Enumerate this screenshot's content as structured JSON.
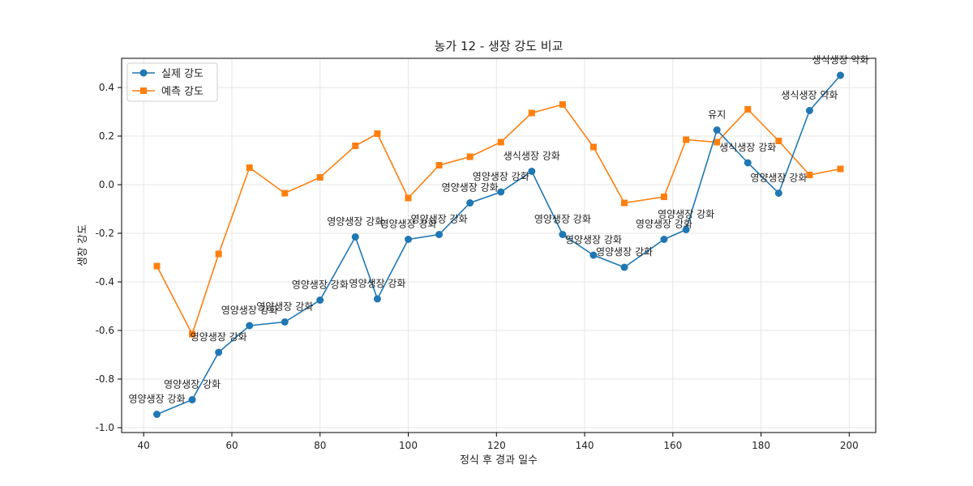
{
  "chart_data": {
    "type": "line",
    "title": "농가 12 - 생장 강도 비교",
    "xlabel": "정식 후 경과 일수",
    "ylabel": "생장 강도",
    "xlim": [
      35,
      206
    ],
    "ylim": [
      -1.02,
      0.52
    ],
    "x_ticks": [
      40,
      60,
      80,
      100,
      120,
      140,
      160,
      180,
      200
    ],
    "y_ticks": [
      -1.0,
      -0.8,
      -0.6,
      -0.4,
      -0.2,
      0.0,
      0.2,
      0.4
    ],
    "x_tick_labels": [
      "40",
      "60",
      "80",
      "100",
      "120",
      "140",
      "160",
      "180",
      "200"
    ],
    "y_tick_labels": [
      "-1.0",
      "-0.8",
      "-0.6",
      "-0.4",
      "-0.2",
      "0.0",
      "0.2",
      "0.4"
    ],
    "grid": true,
    "legend_position": "top-left",
    "x": [
      43,
      51,
      57,
      64,
      72,
      80,
      88,
      93,
      100,
      107,
      114,
      121,
      128,
      135,
      142,
      149,
      158,
      163,
      170,
      177,
      184,
      191,
      198
    ],
    "series": [
      {
        "name": "실제 강도",
        "color": "#1f77b4",
        "marker": "circle",
        "values": [
          -0.945,
          -0.885,
          -0.69,
          -0.58,
          -0.565,
          -0.475,
          -0.215,
          -0.47,
          -0.225,
          -0.205,
          -0.075,
          -0.03,
          0.055,
          -0.205,
          -0.29,
          -0.34,
          -0.225,
          -0.185,
          0.225,
          0.09,
          -0.035,
          0.305,
          0.45
        ]
      },
      {
        "name": "예측 강도",
        "color": "#ff7f0e",
        "marker": "square",
        "values": [
          -0.335,
          -0.615,
          -0.285,
          0.07,
          -0.035,
          0.03,
          0.16,
          0.21,
          -0.055,
          0.08,
          0.115,
          0.175,
          0.295,
          0.33,
          0.155,
          -0.075,
          -0.05,
          0.185,
          0.175,
          0.31,
          0.18,
          0.04,
          0.065
        ]
      }
    ],
    "annotations": [
      "영양생장 강화",
      "영양생장 강화",
      "영양생장 강화",
      "영양생장 강화",
      "영양생장 강화",
      "영양생장 강화",
      "영양생장 강화",
      "영양생장 강화",
      "영양생장 강화",
      "영양생장 강화",
      "영양생장 강화",
      "영양생장 강화",
      "생식생장 강화",
      "영양생장 강화",
      "영양생장 강화",
      "영양생장 강화",
      "영양생장 강화",
      "영양생장 강화",
      "유지",
      "생식생장 강화",
      "영양생장 강화",
      "생식생장 약화",
      "생식생장 약화"
    ]
  }
}
